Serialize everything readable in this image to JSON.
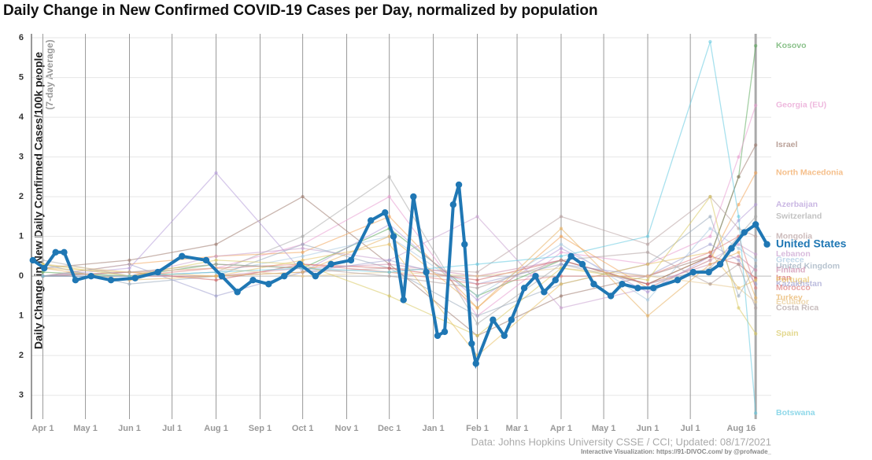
{
  "chart_data": {
    "type": "line",
    "title": "Daily Change in New Confirmed COVID-19 Cases per Day, normalized by population",
    "y_label": "Daily Change in New Daily Confirmed Cases/100k people",
    "y_sublabel": "(7-day Average)",
    "source": "Data: Johns Hopkins University CSSE / CCI; Updated: 08/17/2021",
    "credit": "Interactive Visualization: https://91-DIVOC.com/ by @profwade_",
    "xlim": [
      -8,
      513
    ],
    "ylim": [
      -3.6,
      6.1
    ],
    "xticks": [
      {
        "value": 0,
        "label": "Apr 1"
      },
      {
        "value": 30,
        "label": "May 1"
      },
      {
        "value": 61,
        "label": "Jun 1"
      },
      {
        "value": 91,
        "label": "Jul 1"
      },
      {
        "value": 122,
        "label": "Aug 1"
      },
      {
        "value": 153,
        "label": "Sep 1"
      },
      {
        "value": 183,
        "label": "Oct 1"
      },
      {
        "value": 214,
        "label": "Nov 1"
      },
      {
        "value": 244,
        "label": "Dec 1"
      },
      {
        "value": 275,
        "label": "Jan 1"
      },
      {
        "value": 306,
        "label": "Feb 1"
      },
      {
        "value": 334,
        "label": "Mar 1"
      },
      {
        "value": 365,
        "label": "Apr 1"
      },
      {
        "value": 395,
        "label": "May 1"
      },
      {
        "value": 426,
        "label": "Jun 1"
      },
      {
        "value": 456,
        "label": "Jul 1"
      },
      {
        "value": 502,
        "label": "Aug 16"
      }
    ],
    "yticks": [
      {
        "value": -3,
        "label": "3"
      },
      {
        "value": -2,
        "label": "2"
      },
      {
        "value": -1,
        "label": "1"
      },
      0,
      1,
      2,
      3,
      4,
      5,
      6
    ],
    "grid": true,
    "series": [
      {
        "name": "Kosovo",
        "color": "#5aa85a",
        "x": [
          0,
          61,
          122,
          183,
          244,
          306,
          365,
          426,
          470,
          490,
          502
        ],
        "values": [
          0.1,
          0.0,
          0.3,
          0.2,
          1.2,
          -0.5,
          0.4,
          -0.2,
          0.5,
          2.5,
          5.8
        ]
      },
      {
        "name": "Georgia (EU)",
        "color": "#e89bd0",
        "x": [
          0,
          61,
          122,
          183,
          244,
          306,
          365,
          426,
          470,
          490,
          502
        ],
        "values": [
          0.0,
          0.1,
          0.2,
          0.8,
          2.0,
          -1.0,
          0.6,
          0.3,
          1.0,
          3.0,
          4.3
        ]
      },
      {
        "name": "Israel",
        "color": "#9e7a6e",
        "x": [
          0,
          61,
          122,
          183,
          244,
          306,
          365,
          426,
          470,
          490,
          502
        ],
        "values": [
          0.2,
          0.4,
          0.8,
          2.0,
          0.3,
          -1.5,
          -0.5,
          0.0,
          0.5,
          2.5,
          3.3
        ]
      },
      {
        "name": "North Macedonia",
        "color": "#f2a45a",
        "x": [
          0,
          61,
          122,
          183,
          244,
          306,
          365,
          426,
          470,
          490,
          502
        ],
        "values": [
          0.0,
          0.3,
          0.5,
          0.6,
          1.5,
          -0.8,
          1.0,
          -0.3,
          0.4,
          1.8,
          2.6
        ]
      },
      {
        "name": "Azerbaijan",
        "color": "#b49ad8",
        "x": [
          0,
          61,
          122,
          183,
          244,
          306,
          365,
          426,
          470,
          490,
          502
        ],
        "values": [
          0.0,
          0.2,
          2.6,
          0.1,
          1.3,
          -0.6,
          0.7,
          -0.4,
          0.5,
          1.4,
          1.8
        ]
      },
      {
        "name": "Switzerland",
        "color": "#a9a9a9",
        "x": [
          0,
          61,
          122,
          183,
          244,
          306,
          365,
          426,
          470,
          490,
          502
        ],
        "values": [
          0.4,
          0.0,
          0.1,
          1.0,
          2.5,
          -1.2,
          0.3,
          -0.2,
          0.2,
          1.0,
          1.5
        ]
      },
      {
        "name": "Mongolia",
        "color": "#b8a0a0",
        "x": [
          0,
          61,
          122,
          183,
          244,
          306,
          365,
          426,
          470,
          490,
          502
        ],
        "values": [
          0.0,
          0.0,
          0.0,
          0.1,
          0.2,
          0.1,
          1.5,
          0.8,
          2.0,
          1.2,
          1.0
        ]
      },
      {
        "name": "Lebanon",
        "color": "#c9a0d0",
        "x": [
          0,
          61,
          122,
          183,
          244,
          306,
          365,
          426,
          470,
          490,
          502
        ],
        "values": [
          0.0,
          0.0,
          0.5,
          0.7,
          0.4,
          1.5,
          -0.8,
          -0.3,
          0.4,
          0.8,
          0.55
        ]
      },
      {
        "name": "Greece",
        "color": "#a8c8e0",
        "x": [
          0,
          61,
          122,
          183,
          244,
          306,
          365,
          426,
          470,
          490,
          502
        ],
        "values": [
          0.0,
          0.0,
          0.1,
          0.5,
          1.0,
          -0.5,
          0.8,
          -0.6,
          1.2,
          0.7,
          0.4
        ]
      },
      {
        "name": "United Kingdom",
        "color": "#99aabb",
        "x": [
          0,
          61,
          122,
          183,
          244,
          306,
          365,
          426,
          470,
          490,
          502
        ],
        "values": [
          0.3,
          -0.2,
          0.0,
          0.8,
          0.2,
          -1.0,
          -0.2,
          0.3,
          1.5,
          -0.5,
          0.25
        ]
      },
      {
        "name": "Finland",
        "color": "#cc88aa",
        "x": [
          0,
          61,
          122,
          183,
          244,
          306,
          365,
          426,
          470,
          490,
          502
        ],
        "values": [
          0.0,
          0.0,
          0.0,
          0.2,
          0.3,
          0.0,
          0.4,
          -0.2,
          0.3,
          0.5,
          0.15
        ]
      },
      {
        "name": "Iran",
        "color": "#d06060",
        "x": [
          0,
          61,
          122,
          183,
          244,
          306,
          365,
          426,
          470,
          490,
          502
        ],
        "values": [
          0.0,
          0.1,
          -0.1,
          0.3,
          0.2,
          -0.1,
          0.4,
          -0.2,
          0.5,
          0.3,
          -0.05
        ]
      },
      {
        "name": "Portugal",
        "color": "#e8c060",
        "x": [
          0,
          61,
          122,
          183,
          244,
          306,
          365,
          426,
          470,
          490,
          502
        ],
        "values": [
          0.2,
          0.1,
          0.0,
          0.4,
          0.8,
          -2.0,
          -0.2,
          0.3,
          0.6,
          -0.3,
          -0.1
        ]
      },
      {
        "name": "Kazakhstan",
        "color": "#a0a0d0",
        "x": [
          0,
          61,
          122,
          183,
          244,
          306,
          365,
          426,
          470,
          490,
          502
        ],
        "values": [
          0.0,
          0.3,
          -0.5,
          0.1,
          0.4,
          -0.2,
          0.3,
          0.0,
          0.8,
          0.4,
          -0.2
        ]
      },
      {
        "name": "Morocco",
        "color": "#e08080",
        "x": [
          0,
          61,
          122,
          183,
          244,
          306,
          365,
          426,
          470,
          490,
          502
        ],
        "values": [
          0.0,
          0.0,
          0.2,
          0.3,
          0.1,
          -0.2,
          0.0,
          0.0,
          0.6,
          1.0,
          -0.3
        ]
      },
      {
        "name": "Turkey",
        "color": "#e8b060",
        "x": [
          0,
          61,
          122,
          183,
          244,
          306,
          365,
          426,
          470,
          490,
          502
        ],
        "values": [
          0.2,
          -0.1,
          0.0,
          0.1,
          1.0,
          -0.8,
          1.2,
          -1.0,
          0.3,
          0.6,
          -0.55
        ]
      },
      {
        "name": "Ecuador",
        "color": "#e8c890",
        "x": [
          0,
          61,
          122,
          183,
          244,
          306,
          365,
          426,
          470,
          490,
          502
        ],
        "values": [
          0.3,
          0.1,
          0.2,
          0.0,
          0.1,
          0.0,
          0.2,
          0.0,
          -0.2,
          -0.3,
          -0.65
        ]
      },
      {
        "name": "Costa Rica",
        "color": "#b0a0a0",
        "x": [
          0,
          61,
          122,
          183,
          244,
          306,
          365,
          426,
          470,
          490,
          502
        ],
        "values": [
          0.0,
          0.1,
          0.3,
          0.2,
          0.0,
          -0.3,
          0.4,
          0.6,
          -0.2,
          0.3,
          -0.8
        ]
      },
      {
        "name": "Spain",
        "color": "#d8c860",
        "x": [
          0,
          61,
          122,
          183,
          244,
          306,
          365,
          426,
          470,
          490,
          502
        ],
        "values": [
          0.3,
          0.0,
          0.4,
          0.3,
          -0.5,
          -1.5,
          0.2,
          -0.1,
          2.0,
          -0.8,
          -1.45
        ]
      },
      {
        "name": "Botswana",
        "color": "#60c8e0",
        "x": [
          0,
          61,
          122,
          183,
          244,
          306,
          365,
          426,
          470,
          490,
          502
        ],
        "values": [
          0.0,
          0.0,
          0.1,
          0.2,
          0.1,
          0.3,
          0.5,
          1.0,
          5.9,
          1.5,
          -3.45
        ]
      },
      {
        "name": "United States",
        "color": "#1f77b4",
        "highlight": true,
        "x": [
          -7,
          1,
          9,
          15,
          23,
          34,
          48,
          65,
          81,
          98,
          115,
          126,
          137,
          148,
          159,
          170,
          181,
          192,
          203,
          217,
          231,
          241,
          247,
          254,
          261,
          270,
          278,
          283,
          289,
          293,
          297,
          302,
          305,
          317,
          325,
          330,
          339,
          347,
          353,
          361,
          372,
          380,
          388,
          400,
          408,
          419,
          430,
          447,
          458,
          469,
          477,
          485,
          494,
          502,
          510
        ],
        "values": [
          0.4,
          0.2,
          0.6,
          0.6,
          -0.1,
          0.0,
          -0.1,
          -0.05,
          0.1,
          0.5,
          0.4,
          0.0,
          -0.4,
          -0.1,
          -0.2,
          0.0,
          0.3,
          0.0,
          0.3,
          0.4,
          1.4,
          1.6,
          1.0,
          -0.6,
          2.0,
          0.1,
          -1.5,
          -1.4,
          1.8,
          2.3,
          0.8,
          -1.7,
          -2.2,
          -1.1,
          -1.5,
          -1.1,
          -0.3,
          0.0,
          -0.4,
          -0.1,
          0.5,
          0.3,
          -0.2,
          -0.5,
          -0.2,
          -0.3,
          -0.3,
          -0.1,
          0.1,
          0.1,
          0.3,
          0.7,
          1.1,
          1.3,
          0.8
        ]
      }
    ]
  }
}
